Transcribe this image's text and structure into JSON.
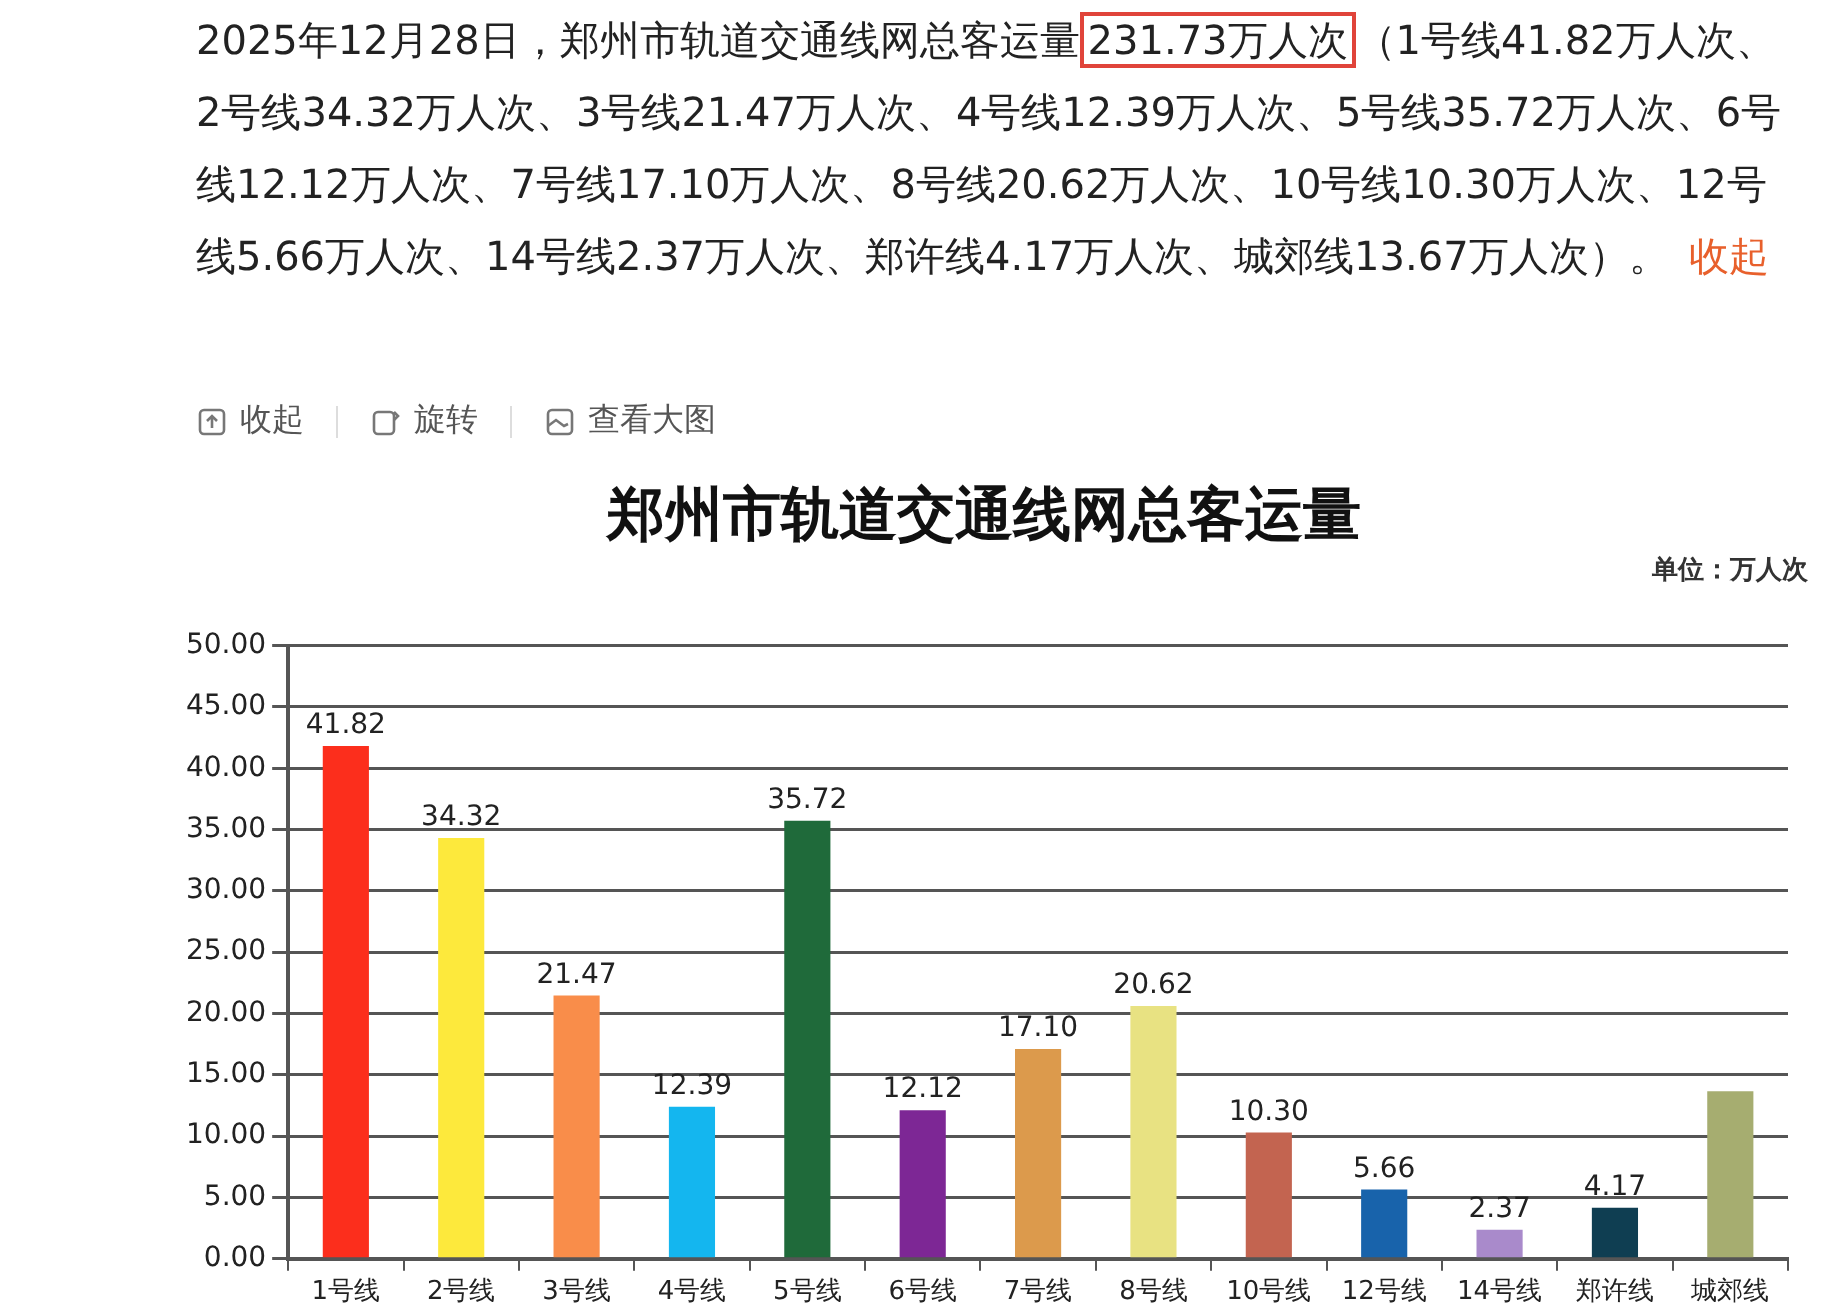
{
  "chart_data": {
    "type": "bar",
    "title": "郑州市轨道交通线网总客运量",
    "categories": [
      "1号线",
      "2号线",
      "3号线",
      "4号线",
      "5号线",
      "6号线",
      "7号线",
      "8号线",
      "10号线",
      "12号线",
      "14号线",
      "郑许线",
      "城郊线"
    ],
    "values": [
      41.82,
      34.32,
      21.47,
      12.39,
      35.72,
      12.12,
      17.1,
      20.62,
      10.3,
      5.66,
      2.37,
      4.17,
      13.67
    ],
    "value_labels": [
      "41.82",
      "34.32",
      "21.47",
      "12.39",
      "35.72",
      "12.12",
      "17.10",
      "20.62",
      "10.30",
      "5.66",
      "2.37",
      "4.17",
      null
    ],
    "colors": [
      "#fc2e1c",
      "#fde93c",
      "#f98d4a",
      "#14b6ef",
      "#1f6a3a",
      "#7d2795",
      "#dc9a4c",
      "#e8e282",
      "#c36450",
      "#1863ab",
      "#a98acb",
      "#0f3e52",
      "#a6ad70"
    ],
    "ylim": [
      0,
      50
    ],
    "yticks": [
      {
        "value": 0,
        "label": "0.00"
      },
      {
        "value": 5,
        "label": "5.00"
      },
      {
        "value": 10,
        "label": "10.00"
      },
      {
        "value": 15,
        "label": "15.00"
      },
      {
        "value": 20,
        "label": "20.00"
      },
      {
        "value": 25,
        "label": "25.00"
      },
      {
        "value": 30,
        "label": "30.00"
      },
      {
        "value": 35,
        "label": "35.00"
      },
      {
        "value": 40,
        "label": "40.00"
      },
      {
        "value": 45,
        "label": "45.00"
      },
      {
        "value": 50,
        "label": "50.00"
      }
    ],
    "grid": "y",
    "annotations": [
      "2025年12月28日，郑州市轨道交通线网总客运量",
      "231.73万人次",
      "（1号线41.82万人次、2号线34.32万人次、3号线21.47万人次、4号线12.39万人次、5号线35.72万人次、6号线12.12万人次、7号线17.10万人次、8号线20.62万人次、10号线10.30万人次、12号线5.66万人次、14号线2.37万人次、郑许线4.17万人次、城郊线13.67万人次）。",
      "收起",
      "收起",
      "旋转",
      "查看大图",
      "单位：万人次"
    ]
  }
}
